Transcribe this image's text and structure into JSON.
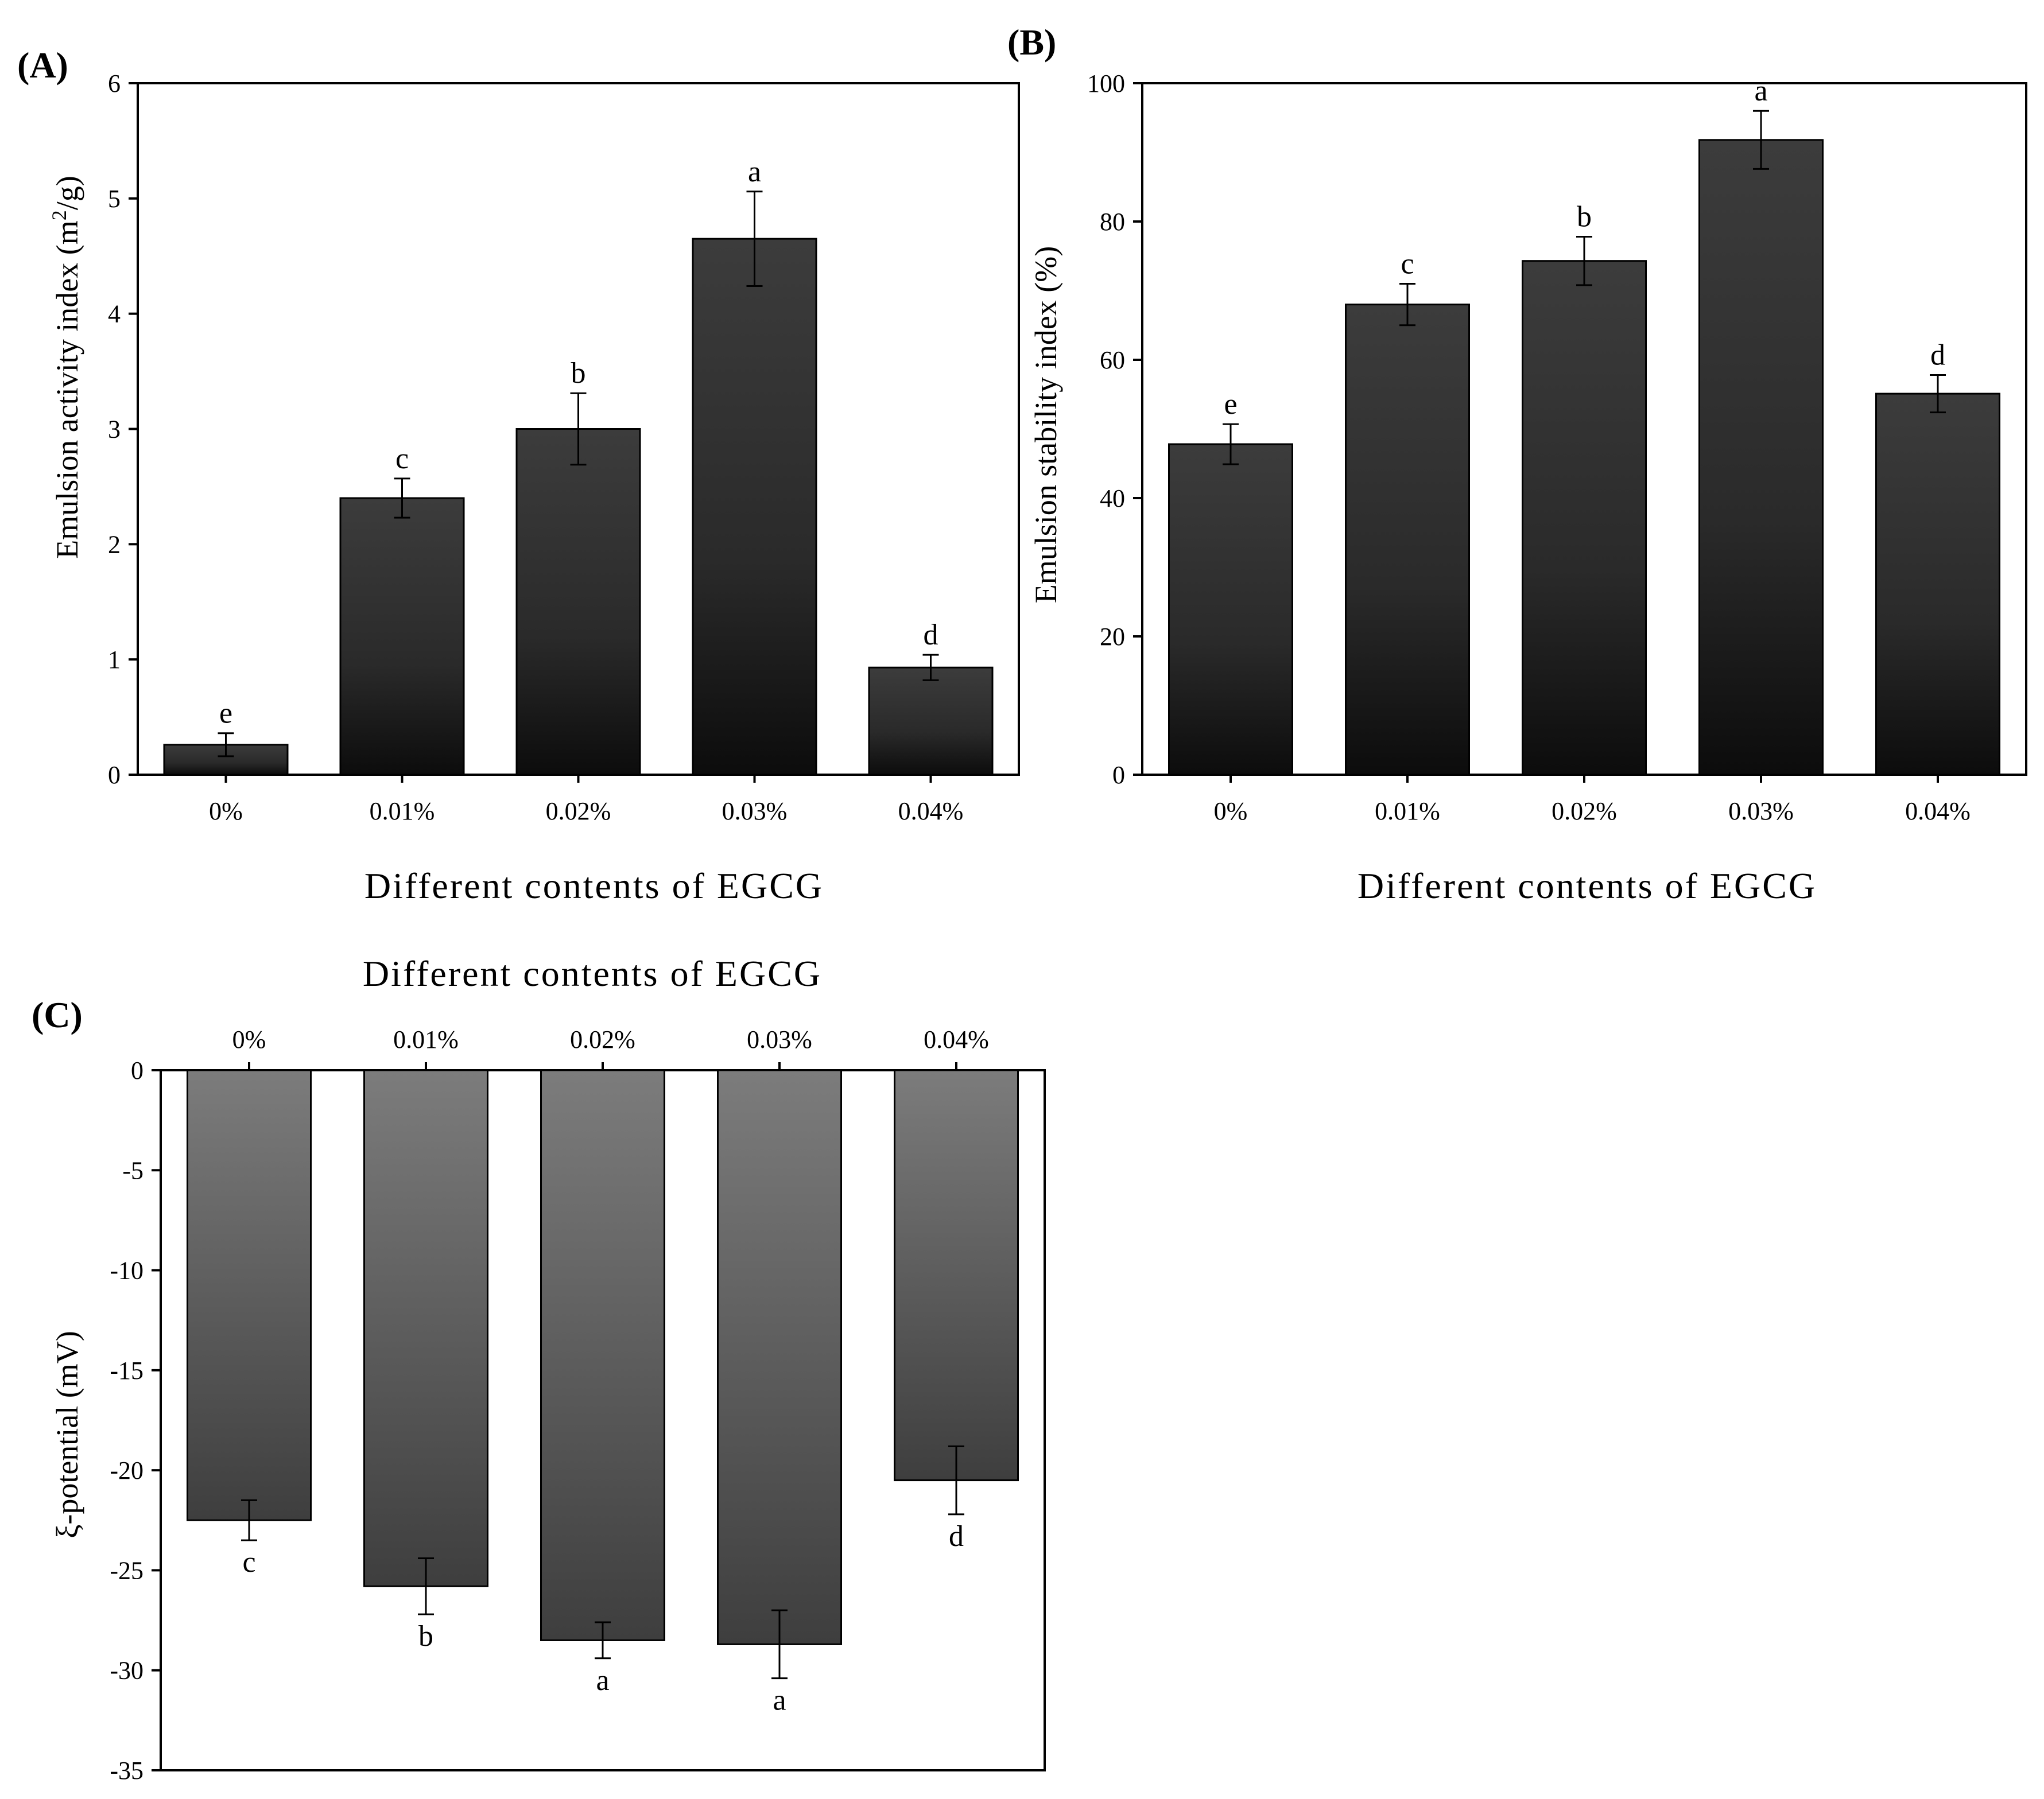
{
  "chart_data": [
    {
      "panel_label": "(A)",
      "type": "bar",
      "categories": [
        "0%",
        "0.01%",
        "0.02%",
        "0.03%",
        "0.04%"
      ],
      "values": [
        0.26,
        2.4,
        3.0,
        4.65,
        0.93
      ],
      "errors": [
        0.1,
        0.17,
        0.31,
        0.41,
        0.11
      ],
      "significance_letters": [
        "e",
        "c",
        "b",
        "a",
        "d"
      ],
      "xlabel": "Different contents of EGCG",
      "ylabel": "Emulsion activity index (m²/g)",
      "ylim": [
        0,
        6
      ],
      "yticks": [
        0,
        1,
        2,
        3,
        4,
        5,
        6
      ],
      "bar_color": "#3a3a3a",
      "bar_color_bottom": "#0f0f0f"
    },
    {
      "panel_label": "(B)",
      "type": "bar",
      "categories": [
        "0%",
        "0.01%",
        "0.02%",
        "0.03%",
        "0.04%"
      ],
      "values": [
        47.8,
        68.0,
        74.3,
        91.8,
        55.1
      ],
      "errors": [
        2.9,
        3.0,
        3.5,
        4.2,
        2.7
      ],
      "significance_letters": [
        "e",
        "c",
        "b",
        "a",
        "d"
      ],
      "xlabel": "Different contents of EGCG",
      "ylabel": "Emulsion stability index (%)",
      "ylim": [
        0,
        100
      ],
      "yticks": [
        0,
        20,
        40,
        60,
        80,
        100
      ],
      "bar_color": "#3a3a3a",
      "bar_color_bottom": "#0f0f0f"
    },
    {
      "panel_label": "(C)",
      "type": "bar",
      "categories": [
        "0%",
        "0.01%",
        "0.02%",
        "0.03%",
        "0.04%"
      ],
      "values": [
        -22.5,
        -25.8,
        -28.5,
        -28.7,
        -20.5
      ],
      "errors": [
        1.0,
        1.4,
        0.9,
        1.7,
        1.7
      ],
      "significance_letters": [
        "c",
        "b",
        "a",
        "a",
        "d"
      ],
      "xlabel": "Different contents of EGCG",
      "ylabel": "ξ-potential (mV)",
      "ylim": [
        -35,
        0
      ],
      "yticks": [
        0,
        -5,
        -10,
        -15,
        -20,
        -25,
        -30,
        -35
      ],
      "bar_color": "#7a7a7a",
      "bar_color_bottom": "#3a3a3a"
    }
  ]
}
